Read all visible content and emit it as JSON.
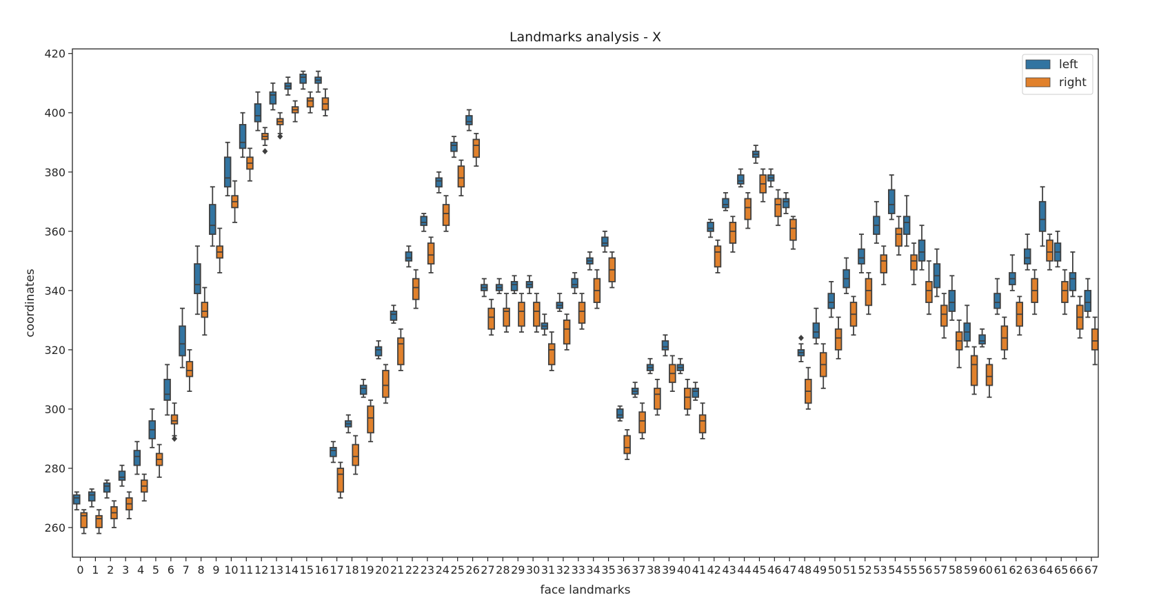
{
  "chart_data": {
    "type": "box",
    "title": "Landmarks analysis - X",
    "xlabel": "face landmarks",
    "ylabel": "coordinates",
    "ylim": [
      250,
      421.6
    ],
    "yticks": [
      260,
      280,
      300,
      320,
      340,
      360,
      380,
      400,
      420
    ],
    "grid": false,
    "legend_position": "upper right",
    "categories": [
      "0",
      "1",
      "2",
      "3",
      "4",
      "5",
      "6",
      "7",
      "8",
      "9",
      "10",
      "11",
      "12",
      "13",
      "14",
      "15",
      "16",
      "17",
      "18",
      "19",
      "20",
      "21",
      "22",
      "23",
      "24",
      "25",
      "26",
      "27",
      "28",
      "29",
      "30",
      "31",
      "32",
      "33",
      "34",
      "35",
      "36",
      "37",
      "38",
      "39",
      "40",
      "41",
      "42",
      "43",
      "44",
      "45",
      "46",
      "47",
      "48",
      "49",
      "50",
      "51",
      "52",
      "53",
      "54",
      "55",
      "56",
      "57",
      "58",
      "59",
      "60",
      "61",
      "62",
      "63",
      "64",
      "65",
      "66",
      "67"
    ],
    "box_format": [
      "whisker_low",
      "q1",
      "median",
      "q3",
      "whisker_high"
    ],
    "series": [
      {
        "name": "left",
        "color": "#3274a1",
        "boxes": [
          [
            266,
            268,
            270,
            271,
            272
          ],
          [
            267,
            269,
            271,
            272,
            273
          ],
          [
            270,
            272,
            274,
            275,
            276
          ],
          [
            274,
            276,
            277,
            279,
            281
          ],
          [
            278,
            281,
            284,
            286,
            289
          ],
          [
            287,
            290,
            293,
            296,
            300
          ],
          [
            298,
            303,
            305,
            310,
            315
          ],
          [
            314,
            318,
            322,
            328,
            334
          ],
          [
            332,
            339,
            342,
            349,
            355
          ],
          [
            355,
            359,
            362,
            369,
            375
          ],
          [
            372,
            375,
            378,
            385,
            390
          ],
          [
            385,
            388,
            390,
            396,
            400
          ],
          [
            394,
            397,
            399,
            403,
            407
          ],
          [
            401,
            403,
            406,
            407,
            410
          ],
          [
            406,
            408,
            409,
            410,
            412
          ],
          [
            408,
            410,
            412,
            413,
            414
          ],
          [
            407,
            410,
            411,
            412,
            414
          ],
          [
            282,
            284,
            286,
            287,
            289
          ],
          [
            292,
            294,
            295,
            296,
            298
          ],
          [
            304,
            305,
            307,
            308,
            310
          ],
          [
            317,
            318,
            320,
            321,
            323
          ],
          [
            329,
            330,
            332,
            333,
            335
          ],
          [
            348,
            350,
            351,
            353,
            355
          ],
          [
            360,
            362,
            363,
            365,
            366
          ],
          [
            373,
            375,
            377,
            378,
            380
          ],
          [
            385,
            387,
            389,
            390,
            392
          ],
          [
            394,
            396,
            397,
            399,
            401
          ],
          [
            338,
            340,
            341,
            342,
            344
          ],
          [
            339,
            340,
            341,
            342,
            344
          ],
          [
            339,
            340,
            342,
            343,
            345
          ],
          [
            339,
            341,
            342,
            343,
            345
          ],
          [
            325,
            327,
            328,
            329,
            332
          ],
          [
            333,
            334,
            335,
            336,
            339
          ],
          [
            339,
            341,
            342,
            344,
            346
          ],
          [
            347,
            349,
            350,
            351,
            353
          ],
          [
            353,
            355,
            356,
            358,
            360
          ],
          [
            296,
            297,
            298,
            300,
            301
          ],
          [
            304,
            305,
            306,
            307,
            309
          ],
          [
            312,
            313,
            314,
            315,
            317
          ],
          [
            318,
            320,
            321,
            323,
            325
          ],
          [
            312,
            313,
            314,
            315,
            317
          ],
          [
            303,
            304,
            306,
            307,
            309
          ],
          [
            358,
            360,
            361,
            363,
            364
          ],
          [
            367,
            368,
            369,
            371,
            373
          ],
          [
            375,
            376,
            377,
            379,
            381
          ],
          [
            383,
            385,
            386,
            387,
            389
          ],
          [
            375,
            377,
            378,
            379,
            381
          ],
          [
            366,
            368,
            370,
            371,
            373
          ],
          [
            316,
            318,
            319,
            320,
            322
          ],
          [
            322,
            324,
            326,
            329,
            334
          ],
          [
            331,
            334,
            336,
            339,
            343
          ],
          [
            339,
            341,
            344,
            347,
            351
          ],
          [
            346,
            349,
            351,
            354,
            359
          ],
          [
            356,
            359,
            362,
            365,
            370
          ],
          [
            364,
            366,
            369,
            374,
            379
          ],
          [
            355,
            359,
            363,
            365,
            372
          ],
          [
            347,
            350,
            353,
            357,
            362
          ],
          [
            338,
            341,
            345,
            349,
            354
          ],
          [
            330,
            333,
            336,
            340,
            345
          ],
          [
            321,
            323,
            326,
            329,
            335
          ],
          [
            321,
            322,
            323,
            325,
            327
          ],
          [
            332,
            334,
            336,
            339,
            344
          ],
          [
            340,
            342,
            344,
            346,
            352
          ],
          [
            347,
            349,
            351,
            354,
            359
          ],
          [
            355,
            360,
            364,
            370,
            375
          ],
          [
            348,
            350,
            353,
            356,
            360
          ],
          [
            338,
            340,
            344,
            346,
            353
          ],
          [
            331,
            333,
            336,
            340,
            344
          ]
        ],
        "outliers": [
          {
            "index": 48,
            "values": [
              324
            ]
          }
        ]
      },
      {
        "name": "right",
        "color": "#e1812c",
        "boxes": [
          [
            258,
            260,
            264,
            265,
            266
          ],
          [
            258,
            260,
            263,
            264,
            266
          ],
          [
            260,
            263,
            265,
            267,
            269
          ],
          [
            263,
            266,
            268,
            270,
            272
          ],
          [
            269,
            272,
            274,
            276,
            278
          ],
          [
            277,
            281,
            283,
            285,
            288
          ],
          [
            291,
            295,
            296,
            298,
            302
          ],
          [
            306,
            311,
            313,
            316,
            320
          ],
          [
            325,
            331,
            333,
            336,
            341
          ],
          [
            346,
            351,
            353,
            355,
            361
          ],
          [
            363,
            368,
            370,
            372,
            377
          ],
          [
            377,
            381,
            383,
            385,
            388
          ],
          [
            389,
            391,
            392,
            393,
            395
          ],
          [
            393,
            396,
            397,
            398,
            400
          ],
          [
            397,
            400,
            401,
            402,
            404
          ],
          [
            400,
            402,
            404,
            405,
            407
          ],
          [
            399,
            401,
            403,
            405,
            408
          ],
          [
            270,
            272,
            278,
            280,
            282
          ],
          [
            278,
            281,
            284,
            288,
            291
          ],
          [
            289,
            292,
            297,
            301,
            303
          ],
          [
            302,
            304,
            308,
            313,
            315
          ],
          [
            313,
            315,
            322,
            324,
            327
          ],
          [
            334,
            337,
            341,
            344,
            347
          ],
          [
            346,
            349,
            352,
            356,
            358
          ],
          [
            360,
            362,
            366,
            369,
            372
          ],
          [
            372,
            375,
            378,
            382,
            384
          ],
          [
            382,
            385,
            389,
            391,
            393
          ],
          [
            325,
            327,
            331,
            334,
            337
          ],
          [
            326,
            328,
            333,
            334,
            339
          ],
          [
            326,
            328,
            333,
            336,
            339
          ],
          [
            326,
            328,
            333,
            336,
            339
          ],
          [
            313,
            315,
            320,
            322,
            326
          ],
          [
            320,
            322,
            327,
            330,
            332
          ],
          [
            327,
            329,
            333,
            336,
            339
          ],
          [
            334,
            336,
            340,
            344,
            347
          ],
          [
            341,
            343,
            347,
            351,
            353
          ],
          [
            283,
            285,
            287,
            291,
            293
          ],
          [
            290,
            292,
            296,
            299,
            302
          ],
          [
            298,
            300,
            305,
            307,
            310
          ],
          [
            306,
            309,
            312,
            315,
            318
          ],
          [
            298,
            300,
            304,
            307,
            310
          ],
          [
            290,
            292,
            296,
            298,
            302
          ],
          [
            346,
            348,
            353,
            355,
            357
          ],
          [
            353,
            356,
            360,
            363,
            365
          ],
          [
            361,
            364,
            368,
            371,
            373
          ],
          [
            370,
            373,
            376,
            379,
            381
          ],
          [
            362,
            365,
            369,
            371,
            374
          ],
          [
            354,
            357,
            361,
            364,
            365
          ],
          [
            300,
            302,
            306,
            310,
            314
          ],
          [
            307,
            311,
            315,
            319,
            322
          ],
          [
            317,
            320,
            324,
            327,
            331
          ],
          [
            325,
            328,
            332,
            336,
            338
          ],
          [
            332,
            335,
            340,
            344,
            346
          ],
          [
            342,
            346,
            350,
            352,
            355
          ],
          [
            352,
            355,
            359,
            361,
            365
          ],
          [
            342,
            347,
            350,
            352,
            356
          ],
          [
            332,
            336,
            340,
            343,
            350
          ],
          [
            324,
            328,
            332,
            335,
            339
          ],
          [
            314,
            320,
            323,
            326,
            330
          ],
          [
            305,
            308,
            315,
            318,
            321
          ],
          [
            304,
            308,
            311,
            315,
            317
          ],
          [
            317,
            320,
            324,
            328,
            331
          ],
          [
            325,
            328,
            332,
            336,
            338
          ],
          [
            332,
            336,
            340,
            344,
            347
          ],
          [
            347,
            350,
            353,
            357,
            359
          ],
          [
            332,
            336,
            340,
            343,
            347
          ],
          [
            324,
            327,
            331,
            335,
            338
          ],
          [
            315,
            320,
            323,
            327,
            331
          ]
        ],
        "outliers": [
          {
            "index": 6,
            "values": [
              290
            ]
          },
          {
            "index": 12,
            "values": [
              387
            ]
          },
          {
            "index": 13,
            "values": [
              392
            ]
          }
        ]
      }
    ]
  },
  "legend": {
    "items": [
      {
        "label": "left",
        "color": "#3274a1"
      },
      {
        "label": "right",
        "color": "#e1812c"
      }
    ]
  }
}
